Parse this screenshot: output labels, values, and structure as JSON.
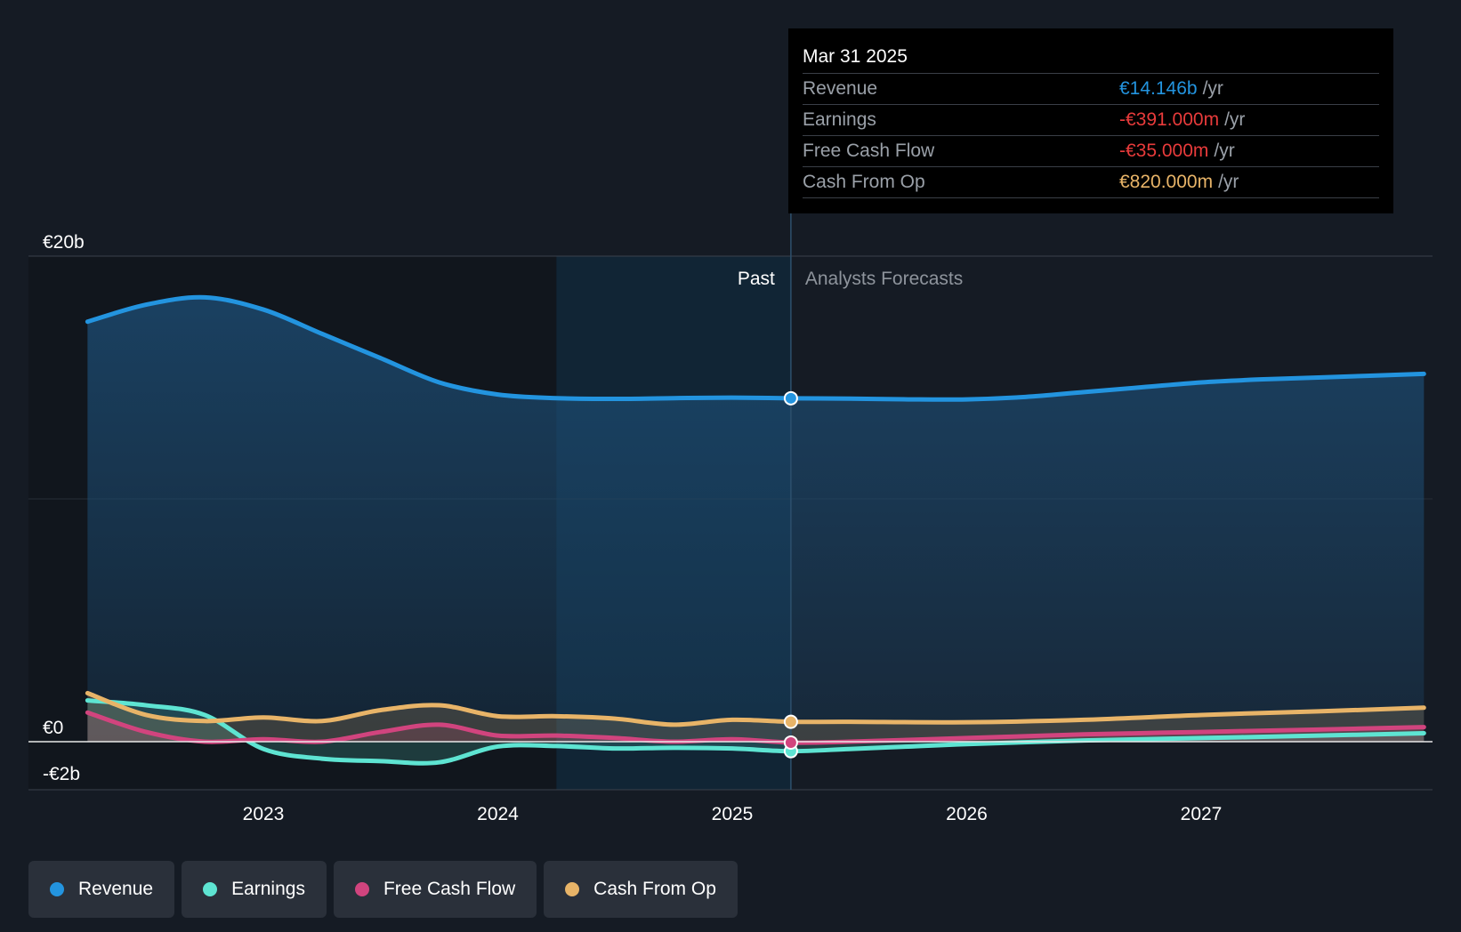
{
  "chart_data": {
    "type": "area",
    "y_axis": {
      "labels": [
        "€20b",
        "€0",
        "-€2b"
      ],
      "ylim": [
        -2,
        20
      ],
      "unit": "€b"
    },
    "x_axis": {
      "ticks": [
        "2023",
        "2024",
        "2025",
        "2026",
        "2027"
      ],
      "xlim": [
        2022.25,
        2027.95
      ]
    },
    "regions": {
      "past_label": "Past",
      "forecast_label": "Analysts Forecasts",
      "divider_x": 2025.25,
      "highlight_start": 2024.25
    },
    "series": [
      {
        "name": "Revenue",
        "color": "#2394df",
        "points": [
          [
            2022.25,
            17.3
          ],
          [
            2022.5,
            18.0
          ],
          [
            2022.75,
            18.3
          ],
          [
            2023.0,
            17.8
          ],
          [
            2023.25,
            16.8
          ],
          [
            2023.5,
            15.8
          ],
          [
            2023.75,
            14.8
          ],
          [
            2024.0,
            14.3
          ],
          [
            2024.25,
            14.15
          ],
          [
            2024.5,
            14.12
          ],
          [
            2024.75,
            14.15
          ],
          [
            2025.0,
            14.17
          ],
          [
            2025.25,
            14.146
          ],
          [
            2025.5,
            14.13
          ],
          [
            2025.75,
            14.1
          ],
          [
            2026.0,
            14.1
          ],
          [
            2026.25,
            14.2
          ],
          [
            2026.5,
            14.4
          ],
          [
            2026.75,
            14.6
          ],
          [
            2027.0,
            14.8
          ],
          [
            2027.25,
            14.92
          ],
          [
            2027.5,
            15.0
          ],
          [
            2027.95,
            15.15
          ]
        ]
      },
      {
        "name": "Earnings",
        "color": "#5ee4d2",
        "points": [
          [
            2022.25,
            1.7
          ],
          [
            2022.5,
            1.5
          ],
          [
            2022.75,
            1.1
          ],
          [
            2023.0,
            -0.3
          ],
          [
            2023.25,
            -0.7
          ],
          [
            2023.5,
            -0.8
          ],
          [
            2023.75,
            -0.85
          ],
          [
            2024.0,
            -0.2
          ],
          [
            2024.25,
            -0.18
          ],
          [
            2024.5,
            -0.28
          ],
          [
            2024.75,
            -0.25
          ],
          [
            2025.0,
            -0.28
          ],
          [
            2025.25,
            -0.391
          ],
          [
            2025.5,
            -0.3
          ],
          [
            2025.75,
            -0.2
          ],
          [
            2026.0,
            -0.1
          ],
          [
            2026.5,
            0.05
          ],
          [
            2027.0,
            0.15
          ],
          [
            2027.5,
            0.25
          ],
          [
            2027.95,
            0.35
          ]
        ]
      },
      {
        "name": "Free Cash Flow",
        "color": "#d1447e",
        "points": [
          [
            2022.25,
            1.2
          ],
          [
            2022.5,
            0.4
          ],
          [
            2022.75,
            0.0
          ],
          [
            2023.0,
            0.1
          ],
          [
            2023.25,
            0.0
          ],
          [
            2023.5,
            0.4
          ],
          [
            2023.75,
            0.7
          ],
          [
            2024.0,
            0.25
          ],
          [
            2024.25,
            0.25
          ],
          [
            2024.5,
            0.15
          ],
          [
            2024.75,
            0.0
          ],
          [
            2025.0,
            0.1
          ],
          [
            2025.25,
            -0.035
          ],
          [
            2025.5,
            0.0
          ],
          [
            2026.0,
            0.15
          ],
          [
            2026.5,
            0.3
          ],
          [
            2027.0,
            0.4
          ],
          [
            2027.5,
            0.5
          ],
          [
            2027.95,
            0.6
          ]
        ]
      },
      {
        "name": "Cash From Op",
        "color": "#e8b468",
        "points": [
          [
            2022.25,
            2.0
          ],
          [
            2022.5,
            1.1
          ],
          [
            2022.75,
            0.85
          ],
          [
            2023.0,
            1.0
          ],
          [
            2023.25,
            0.85
          ],
          [
            2023.5,
            1.3
          ],
          [
            2023.75,
            1.5
          ],
          [
            2024.0,
            1.05
          ],
          [
            2024.25,
            1.05
          ],
          [
            2024.5,
            0.95
          ],
          [
            2024.75,
            0.7
          ],
          [
            2025.0,
            0.9
          ],
          [
            2025.25,
            0.82
          ],
          [
            2025.5,
            0.82
          ],
          [
            2026.0,
            0.8
          ],
          [
            2026.5,
            0.9
          ],
          [
            2027.0,
            1.1
          ],
          [
            2027.5,
            1.25
          ],
          [
            2027.95,
            1.4
          ]
        ]
      }
    ],
    "legend": {
      "placement": "bottom-left"
    }
  },
  "tooltip": {
    "date": "Mar 31 2025",
    "rows": [
      {
        "label": "Revenue",
        "value": "€14.146b",
        "unit": "/yr",
        "color": "#2394df"
      },
      {
        "label": "Earnings",
        "value": "-€391.000m",
        "unit": "/yr",
        "color": "#e83b3b"
      },
      {
        "label": "Free Cash Flow",
        "value": "-€35.000m",
        "unit": "/yr",
        "color": "#e83b3b"
      },
      {
        "label": "Cash From Op",
        "value": "€820.000m",
        "unit": "/yr",
        "color": "#e8b468"
      }
    ]
  },
  "legend_items": [
    {
      "label": "Revenue",
      "color": "#2394df"
    },
    {
      "label": "Earnings",
      "color": "#5ee4d2"
    },
    {
      "label": "Free Cash Flow",
      "color": "#d1447e"
    },
    {
      "label": "Cash From Op",
      "color": "#e8b468"
    }
  ]
}
